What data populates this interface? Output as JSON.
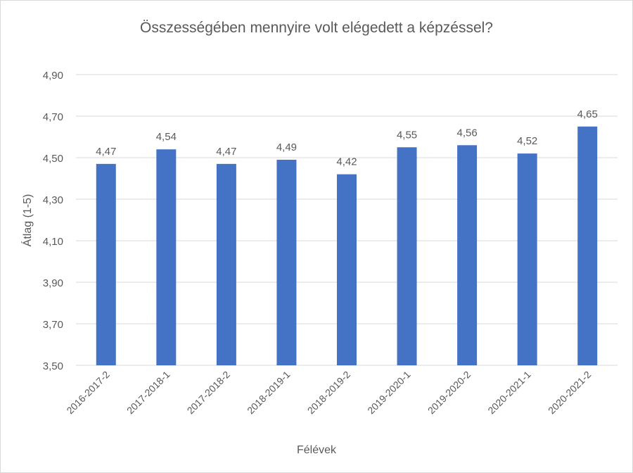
{
  "chart_data": {
    "type": "bar",
    "title": "Összességében mennyire volt elégedett a képzéssel?",
    "xlabel": "Félévek",
    "ylabel": "Átlag (1-5)",
    "categories": [
      "2016-2017-2",
      "2017-2018-1",
      "2017-2018-2",
      "2018-2019-1",
      "2018-2019-2",
      "2019-2020-1",
      "2019-2020-2",
      "2020-2021-1",
      "2020-2021-2"
    ],
    "values": [
      4.47,
      4.54,
      4.47,
      4.49,
      4.42,
      4.55,
      4.56,
      4.52,
      4.65
    ],
    "data_labels": [
      "4,47",
      "4,54",
      "4,47",
      "4,49",
      "4,42",
      "4,55",
      "4,56",
      "4,52",
      "4,65"
    ],
    "ylim": [
      3.5,
      4.9
    ],
    "yticks": [
      3.5,
      3.7,
      3.9,
      4.1,
      4.3,
      4.5,
      4.7,
      4.9
    ],
    "ytick_labels": [
      "3,50",
      "3,70",
      "3,90",
      "4,10",
      "4,30",
      "4,50",
      "4,70",
      "4,90"
    ],
    "grid": true,
    "legend": "none",
    "bar_color": "#4472C4"
  }
}
